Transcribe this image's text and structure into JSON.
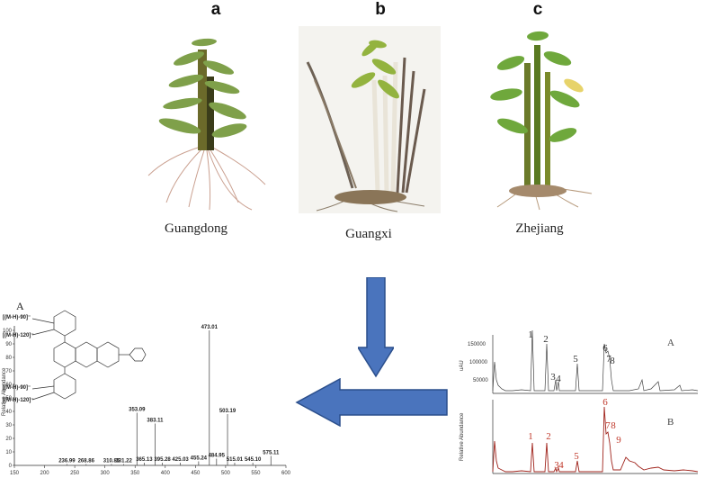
{
  "panels": [
    {
      "letter": "a",
      "place": "Guangdong"
    },
    {
      "letter": "b",
      "place": "Guangxi"
    },
    {
      "letter": "c",
      "place": "Zhejiang"
    }
  ],
  "colors": {
    "arrow_fill": "#4a74bd",
    "arrow_stroke": "#2b4f8c",
    "trace_b": "#a0241c",
    "trace_a": "#444444"
  },
  "mass_spectrum": {
    "panel_label": "A",
    "y_axis_label": "Relative Abundance",
    "y_ticks": [
      "0",
      "10",
      "20",
      "30",
      "40",
      "50",
      "60",
      "70",
      "80",
      "90",
      "100"
    ],
    "x_ticks": [
      "150",
      "200",
      "250",
      "300",
      "350",
      "400",
      "450",
      "500",
      "550",
      "600"
    ],
    "structure_labels": [
      "[(M-H)-90]⁻",
      "[(M-H)-120]⁻",
      "[(M-H)-90]⁻",
      "[(M-H)-120]⁻"
    ],
    "chart_data": {
      "type": "bar",
      "x": [
        236.99,
        268.86,
        310.85,
        331.22,
        353.09,
        365.13,
        383.11,
        395.28,
        425.03,
        455.24,
        473.01,
        484.95,
        503.19,
        515.01,
        545.1,
        575.11
      ],
      "labels": [
        "236.99",
        "268.86",
        "310.85",
        "331.22",
        "353.09",
        "365.13",
        "383.11",
        "395.28",
        "425.03",
        "455.24",
        "473.01",
        "484.95",
        "503.19",
        "515.01",
        "545.10",
        "575.11"
      ],
      "values": [
        1,
        1,
        1,
        1,
        39,
        2,
        31,
        2,
        2,
        3,
        100,
        5,
        38,
        2,
        2,
        7
      ],
      "xlim": [
        150,
        600
      ],
      "ylim": [
        0,
        100
      ],
      "ylabel": "Relative Abundance"
    }
  },
  "chromatograms": {
    "trace_a": {
      "label": "A",
      "y_axis_label": "uAU",
      "y_ticks": [
        "150000",
        "100000",
        "50000"
      ]
    },
    "trace_b": {
      "label": "B",
      "y_axis_label": "Relative Abundance"
    },
    "peak_labels_a": [
      "1",
      "2",
      "3",
      "4",
      "5",
      "6",
      "7",
      "8"
    ],
    "peak_labels_b": [
      "1",
      "2",
      "3",
      "4",
      "5",
      "6",
      "7",
      "8",
      "9"
    ]
  }
}
